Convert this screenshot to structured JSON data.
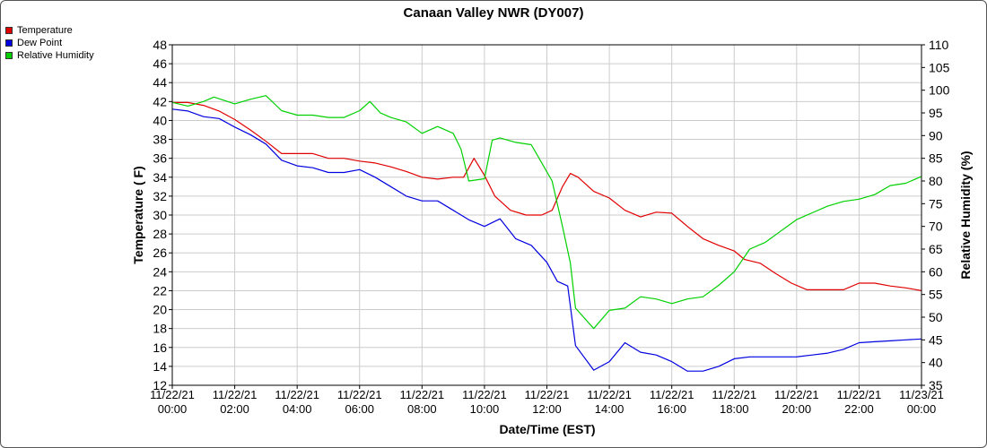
{
  "chart_data": {
    "type": "line",
    "title": "Canaan Valley NWR (DY007)",
    "xlabel": "Date/Time (EST)",
    "ylabel": "Temperature ( F)",
    "y2label": "Relative Humidity (%)",
    "ylim": [
      12,
      48
    ],
    "y2lim": [
      35,
      110
    ],
    "grid": true,
    "legend_position": "top-left",
    "x_ticks": [
      {
        "date": "11/22/21",
        "time": "00:00"
      },
      {
        "date": "11/22/21",
        "time": "02:00"
      },
      {
        "date": "11/22/21",
        "time": "04:00"
      },
      {
        "date": "11/22/21",
        "time": "06:00"
      },
      {
        "date": "11/22/21",
        "time": "08:00"
      },
      {
        "date": "11/22/21",
        "time": "10:00"
      },
      {
        "date": "11/22/21",
        "time": "12:00"
      },
      {
        "date": "11/22/21",
        "time": "14:00"
      },
      {
        "date": "11/22/21",
        "time": "16:00"
      },
      {
        "date": "11/22/21",
        "time": "18:00"
      },
      {
        "date": "11/22/21",
        "time": "20:00"
      },
      {
        "date": "11/22/21",
        "time": "22:00"
      },
      {
        "date": "11/23/21",
        "time": "00:00"
      }
    ],
    "y_ticks": [
      12,
      14,
      16,
      18,
      20,
      22,
      24,
      26,
      28,
      30,
      32,
      34,
      36,
      38,
      40,
      42,
      44,
      46,
      48
    ],
    "y2_ticks": [
      35,
      40,
      45,
      50,
      55,
      60,
      65,
      70,
      75,
      80,
      85,
      90,
      95,
      100,
      105,
      110
    ],
    "series": [
      {
        "name": "Temperature",
        "color": "#e00000",
        "axis": "left",
        "points": [
          [
            "11/22/21 00:00",
            41.9
          ],
          [
            "11/22/21 00:30",
            41.9
          ],
          [
            "11/22/21 01:00",
            41.6
          ],
          [
            "11/22/21 01:30",
            41.0
          ],
          [
            "11/22/21 02:00",
            40.1
          ],
          [
            "11/22/21 02:30",
            39.0
          ],
          [
            "11/22/21 03:00",
            37.8
          ],
          [
            "11/22/21 03:30",
            36.5
          ],
          [
            "11/22/21 04:00",
            36.5
          ],
          [
            "11/22/21 04:30",
            36.5
          ],
          [
            "11/22/21 05:00",
            36.0
          ],
          [
            "11/22/21 05:30",
            36.0
          ],
          [
            "11/22/21 06:00",
            35.7
          ],
          [
            "11/22/21 06:30",
            35.5
          ],
          [
            "11/22/21 07:00",
            35.1
          ],
          [
            "11/22/21 07:30",
            34.6
          ],
          [
            "11/22/21 08:00",
            34.0
          ],
          [
            "11/22/21 08:30",
            33.8
          ],
          [
            "11/22/21 09:00",
            34.0
          ],
          [
            "11/22/21 09:20",
            34.0
          ],
          [
            "11/22/21 09:40",
            36.0
          ],
          [
            "11/22/21 10:00",
            34.2
          ],
          [
            "11/22/21 10:20",
            32.0
          ],
          [
            "11/22/21 10:50",
            30.5
          ],
          [
            "11/22/21 11:20",
            30.0
          ],
          [
            "11/22/21 11:50",
            30.0
          ],
          [
            "11/22/21 12:10",
            30.5
          ],
          [
            "11/22/21 12:30",
            33.0
          ],
          [
            "11/22/21 12:45",
            34.4
          ],
          [
            "11/22/21 13:00",
            34.0
          ],
          [
            "11/22/21 13:30",
            32.5
          ],
          [
            "11/22/21 14:00",
            31.8
          ],
          [
            "11/22/21 14:30",
            30.5
          ],
          [
            "11/22/21 15:00",
            29.8
          ],
          [
            "11/22/21 15:30",
            30.3
          ],
          [
            "11/22/21 16:00",
            30.2
          ],
          [
            "11/22/21 16:30",
            28.8
          ],
          [
            "11/22/21 17:00",
            27.5
          ],
          [
            "11/22/21 17:30",
            26.8
          ],
          [
            "11/22/21 18:00",
            26.2
          ],
          [
            "11/22/21 18:20",
            25.3
          ],
          [
            "11/22/21 18:50",
            24.9
          ],
          [
            "11/22/21 19:20",
            23.8
          ],
          [
            "11/22/21 19:50",
            22.8
          ],
          [
            "11/22/21 20:20",
            22.1
          ],
          [
            "11/22/21 21:00",
            22.1
          ],
          [
            "11/22/21 21:30",
            22.1
          ],
          [
            "11/22/21 22:00",
            22.8
          ],
          [
            "11/22/21 22:30",
            22.8
          ],
          [
            "11/22/21 23:00",
            22.5
          ],
          [
            "11/22/21 23:30",
            22.3
          ],
          [
            "11/23/21 00:00",
            22.0
          ]
        ]
      },
      {
        "name": "Dew Point",
        "color": "#0000e0",
        "axis": "left",
        "points": [
          [
            "11/22/21 00:00",
            41.2
          ],
          [
            "11/22/21 00:30",
            41.0
          ],
          [
            "11/22/21 01:00",
            40.4
          ],
          [
            "11/22/21 01:30",
            40.2
          ],
          [
            "11/22/21 02:00",
            39.3
          ],
          [
            "11/22/21 02:30",
            38.5
          ],
          [
            "11/22/21 03:00",
            37.5
          ],
          [
            "11/22/21 03:30",
            35.8
          ],
          [
            "11/22/21 04:00",
            35.2
          ],
          [
            "11/22/21 04:30",
            35.0
          ],
          [
            "11/22/21 05:00",
            34.5
          ],
          [
            "11/22/21 05:30",
            34.5
          ],
          [
            "11/22/21 06:00",
            34.8
          ],
          [
            "11/22/21 06:30",
            34.0
          ],
          [
            "11/22/21 07:00",
            33.0
          ],
          [
            "11/22/21 07:30",
            32.0
          ],
          [
            "11/22/21 08:00",
            31.5
          ],
          [
            "11/22/21 08:30",
            31.5
          ],
          [
            "11/22/21 09:00",
            30.5
          ],
          [
            "11/22/21 09:30",
            29.5
          ],
          [
            "11/22/21 10:00",
            28.8
          ],
          [
            "11/22/21 10:30",
            29.6
          ],
          [
            "11/22/21 11:00",
            27.5
          ],
          [
            "11/22/21 11:30",
            26.8
          ],
          [
            "11/22/21 12:00",
            25.0
          ],
          [
            "11/22/21 12:20",
            23.0
          ],
          [
            "11/22/21 12:40",
            22.5
          ],
          [
            "11/22/21 12:55",
            16.2
          ],
          [
            "11/22/21 13:30",
            13.6
          ],
          [
            "11/22/21 14:00",
            14.5
          ],
          [
            "11/22/21 14:30",
            16.5
          ],
          [
            "11/22/21 15:00",
            15.5
          ],
          [
            "11/22/21 15:30",
            15.2
          ],
          [
            "11/22/21 16:00",
            14.5
          ],
          [
            "11/22/21 16:30",
            13.5
          ],
          [
            "11/22/21 17:00",
            13.5
          ],
          [
            "11/22/21 17:30",
            14.0
          ],
          [
            "11/22/21 18:00",
            14.8
          ],
          [
            "11/22/21 18:30",
            15.0
          ],
          [
            "11/22/21 19:00",
            15.0
          ],
          [
            "11/22/21 19:30",
            15.0
          ],
          [
            "11/22/21 20:00",
            15.0
          ],
          [
            "11/22/21 20:30",
            15.2
          ],
          [
            "11/22/21 21:00",
            15.4
          ],
          [
            "11/22/21 21:30",
            15.8
          ],
          [
            "11/22/21 22:00",
            16.5
          ],
          [
            "11/22/21 22:30",
            16.6
          ],
          [
            "11/22/21 23:00",
            16.7
          ],
          [
            "11/22/21 23:30",
            16.8
          ],
          [
            "11/23/21 00:00",
            16.9
          ]
        ]
      },
      {
        "name": "Relative Humidity",
        "color": "#00d000",
        "axis": "right",
        "points": [
          [
            "11/22/21 00:00",
            97.3
          ],
          [
            "11/22/21 00:30",
            96.5
          ],
          [
            "11/22/21 01:00",
            97.5
          ],
          [
            "11/22/21 01:20",
            98.5
          ],
          [
            "11/22/21 02:00",
            97.0
          ],
          [
            "11/22/21 02:30",
            98.0
          ],
          [
            "11/22/21 03:00",
            98.8
          ],
          [
            "11/22/21 03:30",
            95.5
          ],
          [
            "11/22/21 04:00",
            94.5
          ],
          [
            "11/22/21 04:30",
            94.5
          ],
          [
            "11/22/21 05:00",
            94.0
          ],
          [
            "11/22/21 05:30",
            94.0
          ],
          [
            "11/22/21 06:00",
            95.5
          ],
          [
            "11/22/21 06:20",
            97.5
          ],
          [
            "11/22/21 06:40",
            95.0
          ],
          [
            "11/22/21 07:00",
            94.0
          ],
          [
            "11/22/21 07:30",
            93.0
          ],
          [
            "11/22/21 08:00",
            90.5
          ],
          [
            "11/22/21 08:30",
            92.0
          ],
          [
            "11/22/21 09:00",
            90.5
          ],
          [
            "11/22/21 09:15",
            87.0
          ],
          [
            "11/22/21 09:30",
            80.0
          ],
          [
            "11/22/21 10:00",
            80.5
          ],
          [
            "11/22/21 10:15",
            89.0
          ],
          [
            "11/22/21 10:30",
            89.5
          ],
          [
            "11/22/21 11:00",
            88.5
          ],
          [
            "11/22/21 11:30",
            88.0
          ],
          [
            "11/22/21 11:50",
            84.0
          ],
          [
            "11/22/21 12:10",
            80.0
          ],
          [
            "11/22/21 12:30",
            70.0
          ],
          [
            "11/22/21 12:45",
            62.0
          ],
          [
            "11/22/21 12:55",
            52.0
          ],
          [
            "11/22/21 13:30",
            47.5
          ],
          [
            "11/22/21 14:00",
            51.5
          ],
          [
            "11/22/21 14:30",
            52.0
          ],
          [
            "11/22/21 15:00",
            54.5
          ],
          [
            "11/22/21 15:30",
            54.0
          ],
          [
            "11/22/21 16:00",
            53.0
          ],
          [
            "11/22/21 16:30",
            54.0
          ],
          [
            "11/22/21 17:00",
            54.5
          ],
          [
            "11/22/21 17:30",
            57.0
          ],
          [
            "11/22/21 18:00",
            60.0
          ],
          [
            "11/22/21 18:30",
            65.0
          ],
          [
            "11/22/21 19:00",
            66.5
          ],
          [
            "11/22/21 19:30",
            69.0
          ],
          [
            "11/22/21 20:00",
            71.5
          ],
          [
            "11/22/21 20:30",
            73.0
          ],
          [
            "11/22/21 21:00",
            74.5
          ],
          [
            "11/22/21 21:30",
            75.5
          ],
          [
            "11/22/21 22:00",
            76.0
          ],
          [
            "11/22/21 22:30",
            77.0
          ],
          [
            "11/22/21 23:00",
            79.0
          ],
          [
            "11/22/21 23:30",
            79.5
          ],
          [
            "11/23/21 00:00",
            81.0
          ]
        ]
      }
    ]
  }
}
